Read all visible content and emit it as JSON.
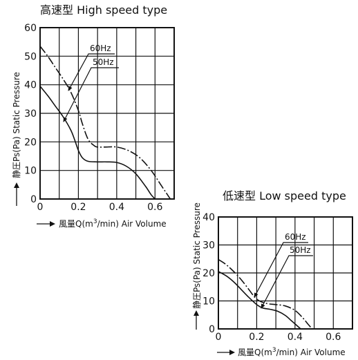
{
  "chart_data": [
    {
      "type": "line",
      "title": "高速型 High speed type",
      "xlabel": "風量Q(m3/min) Air Volume",
      "xlabel_parts": {
        "prefix": "風量Q(m",
        "sup": "3",
        "suffix": "/min)  Air Volume"
      },
      "ylabel": "静圧Ps(Pa)  Static Pressure",
      "xlim": [
        0,
        0.7
      ],
      "ylim": [
        0,
        60
      ],
      "x_ticks": [
        0,
        0.2,
        0.4,
        0.6
      ],
      "x_tick_labels": [
        "0",
        "0.2",
        "0.4",
        "0.6"
      ],
      "y_ticks": [
        0,
        10,
        20,
        30,
        40,
        50,
        60
      ],
      "y_tick_labels": [
        "0",
        "10",
        "20",
        "30",
        "40",
        "50",
        "60"
      ],
      "x_grid_step": 0.1,
      "grid": true,
      "series": [
        {
          "name": "60Hz",
          "style": "dashdot",
          "x": [
            0,
            0.04,
            0.08,
            0.12,
            0.16,
            0.2,
            0.22,
            0.25,
            0.28,
            0.3,
            0.34,
            0.4,
            0.46,
            0.52,
            0.58,
            0.63,
            0.66,
            0.68
          ],
          "y": [
            53.5,
            50,
            46,
            42,
            37.5,
            31,
            26.5,
            21,
            18.8,
            18.2,
            18.2,
            18.2,
            17,
            14.5,
            10,
            5,
            2,
            0
          ]
        },
        {
          "name": "50Hz",
          "style": "solid",
          "x": [
            0,
            0.04,
            0.08,
            0.12,
            0.16,
            0.18,
            0.2,
            0.22,
            0.25,
            0.3,
            0.35,
            0.4,
            0.45,
            0.5,
            0.55,
            0.58,
            0.6
          ],
          "y": [
            39.5,
            36.2,
            32.5,
            28.8,
            24.2,
            20.8,
            17,
            14.5,
            13.2,
            13,
            13,
            12.8,
            11.5,
            8.8,
            4.5,
            1.5,
            0
          ]
        }
      ],
      "series_labels": [
        "60Hz",
        "50Hz"
      ]
    },
    {
      "type": "line",
      "title": "低速型 Low speed type",
      "xlabel": "風量Q(m3/min) Air Volume",
      "xlabel_parts": {
        "prefix": "風量Q(m",
        "sup": "3",
        "suffix": "/min)  Air Volume"
      },
      "ylabel": "静圧Ps(Pa)  Static Pressure",
      "xlim": [
        0,
        0.7
      ],
      "ylim": [
        0,
        40
      ],
      "x_ticks": [
        0,
        0.2,
        0.4,
        0.6
      ],
      "x_tick_labels": [
        "0",
        "0.2",
        "0.4",
        "0.6"
      ],
      "y_ticks": [
        0,
        10,
        20,
        30,
        40
      ],
      "y_tick_labels": [
        "0",
        "10",
        "20",
        "30",
        "40"
      ],
      "x_grid_step": 0.1,
      "grid": true,
      "series": [
        {
          "name": "60Hz",
          "style": "dashdot",
          "x": [
            0,
            0.04,
            0.08,
            0.12,
            0.16,
            0.19,
            0.22,
            0.26,
            0.3,
            0.35,
            0.4,
            0.44,
            0.47,
            0.49
          ],
          "y": [
            24.8,
            23,
            20.5,
            17.5,
            14,
            11.3,
            9.8,
            9,
            8.7,
            8.2,
            6.6,
            4,
            1.5,
            0
          ]
        },
        {
          "name": "50Hz",
          "style": "solid",
          "x": [
            0,
            0.04,
            0.08,
            0.12,
            0.16,
            0.2,
            0.23,
            0.27,
            0.31,
            0.35,
            0.38,
            0.41,
            0.43
          ],
          "y": [
            20.5,
            19,
            16.8,
            14,
            11.2,
            8.7,
            7.5,
            7,
            6.3,
            4.8,
            3,
            1.2,
            0
          ]
        }
      ],
      "series_labels": [
        "60Hz",
        "50Hz"
      ]
    }
  ]
}
